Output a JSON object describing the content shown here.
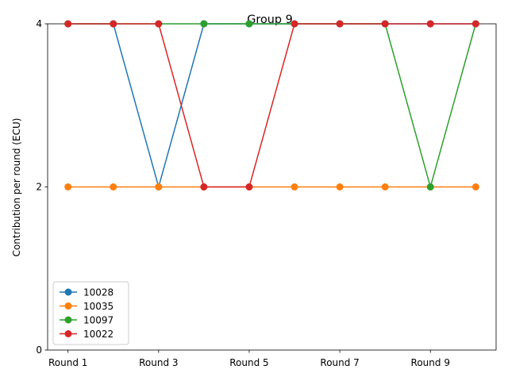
{
  "chart_data": {
    "type": "line",
    "title": "Group 9",
    "xlabel": "",
    "ylabel": "Contribution per round (ECU)",
    "x": [
      1,
      2,
      3,
      4,
      5,
      6,
      7,
      8,
      9,
      10
    ],
    "xticks": [
      1,
      3,
      5,
      7,
      9
    ],
    "xtick_labels": [
      "Round 1",
      "Round 3",
      "Round 5",
      "Round 7",
      "Round 9"
    ],
    "yticks": [
      0,
      2,
      4
    ],
    "ytick_labels": [
      "0",
      "2",
      "4"
    ],
    "ylim": [
      0,
      4
    ],
    "grid": false,
    "legend_position": "lower-left",
    "series": [
      {
        "name": "10028",
        "color": "#1f77b4",
        "values": [
          4,
          4,
          2,
          4,
          4,
          4,
          4,
          4,
          4,
          4
        ]
      },
      {
        "name": "10035",
        "color": "#ff7f0e",
        "values": [
          2,
          2,
          2,
          2,
          2,
          2,
          2,
          2,
          2,
          2
        ]
      },
      {
        "name": "10097",
        "color": "#2ca02c",
        "values": [
          4,
          4,
          4,
          4,
          4,
          4,
          4,
          4,
          2,
          4
        ]
      },
      {
        "name": "10022",
        "color": "#d62728",
        "values": [
          4,
          4,
          4,
          2,
          2,
          4,
          4,
          4,
          4,
          4
        ]
      }
    ]
  }
}
